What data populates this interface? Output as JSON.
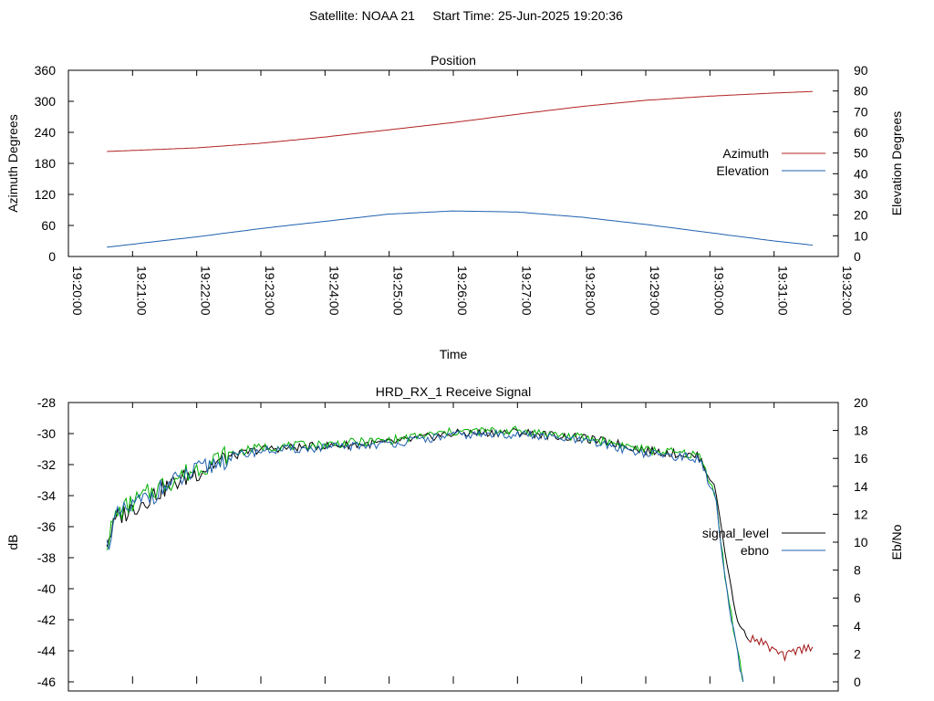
{
  "page_title": "Satellite: NOAA 21     Start Time: 25-Jun-2025 19:20:36",
  "colors": {
    "azimuth": "#b22222",
    "elevation": "#2060b0",
    "signal_level": "#000000",
    "ebno_top": "#00b000",
    "ebno_tail": "#2060b0",
    "signal_tail": "#a01010"
  },
  "chart_data": [
    {
      "type": "line",
      "title": "Position",
      "xlabel": "Time",
      "ylabel": "Azimuth Degrees",
      "y2label": "Elevation Degrees",
      "xlim": [
        "19:20:00",
        "19:32:00"
      ],
      "ylim": [
        0,
        360
      ],
      "y2lim": [
        0,
        90
      ],
      "x_ticks": [
        "19:20:00",
        "19:21:00",
        "19:22:00",
        "19:23:00",
        "19:24:00",
        "19:25:00",
        "19:26:00",
        "19:27:00",
        "19:28:00",
        "19:29:00",
        "19:30:00",
        "19:31:00",
        "19:32:00"
      ],
      "y_ticks": [
        0,
        60,
        120,
        180,
        240,
        300,
        360
      ],
      "y2_ticks": [
        0,
        10,
        20,
        30,
        40,
        50,
        60,
        70,
        80,
        90
      ],
      "legend": "right-center",
      "series": [
        {
          "name": "Azimuth",
          "axis": "y",
          "points": [
            [
              "19:20:36",
              203
            ],
            [
              "19:22:00",
              210
            ],
            [
              "19:23:00",
              219
            ],
            [
              "19:24:00",
              231
            ],
            [
              "19:25:00",
              245
            ],
            [
              "19:26:00",
              259
            ],
            [
              "19:27:00",
              275
            ],
            [
              "19:28:00",
              290
            ],
            [
              "19:29:00",
              302
            ],
            [
              "19:30:00",
              310
            ],
            [
              "19:31:00",
              316
            ],
            [
              "19:31:36",
              319
            ]
          ]
        },
        {
          "name": "Elevation",
          "axis": "y2",
          "points": [
            [
              "19:20:36",
              4.5
            ],
            [
              "19:22:00",
              9.5
            ],
            [
              "19:23:00",
              13.5
            ],
            [
              "19:24:00",
              17
            ],
            [
              "19:25:00",
              20.5
            ],
            [
              "19:26:00",
              22
            ],
            [
              "19:27:00",
              21.5
            ],
            [
              "19:28:00",
              19
            ],
            [
              "19:29:00",
              15.5
            ],
            [
              "19:30:00",
              11.5
            ],
            [
              "19:31:00",
              7.5
            ],
            [
              "19:31:36",
              5.5
            ]
          ]
        }
      ]
    },
    {
      "type": "line",
      "title": "HRD_RX_1 Receive Signal",
      "ylabel": "dB",
      "y2label": "Eb/No",
      "xlim": [
        "19:20:00",
        "19:32:00"
      ],
      "ylim": [
        -46,
        -28
      ],
      "y2lim": [
        0,
        20
      ],
      "y_ticks": [
        -46,
        -44,
        -42,
        -40,
        -38,
        -36,
        -34,
        -32,
        -30,
        -28
      ],
      "y2_ticks": [
        0,
        2,
        4,
        6,
        8,
        10,
        12,
        14,
        16,
        18,
        20
      ],
      "legend": "right-center",
      "series": [
        {
          "name": "signal_level",
          "axis": "y",
          "points": [
            [
              "19:20:36",
              -37
            ],
            [
              "19:20:45",
              -35.5
            ],
            [
              "19:21:00",
              -34.8
            ],
            [
              "19:21:30",
              -33.5
            ],
            [
              "19:22:00",
              -32.5
            ],
            [
              "19:22:30",
              -31.5
            ],
            [
              "19:23:00",
              -31
            ],
            [
              "19:24:00",
              -30.8
            ],
            [
              "19:25:00",
              -30.6
            ],
            [
              "19:26:00",
              -30
            ],
            [
              "19:27:00",
              -29.9
            ],
            [
              "19:28:00",
              -30.3
            ],
            [
              "19:28:30",
              -30.6
            ],
            [
              "19:29:00",
              -31.1
            ],
            [
              "19:29:30",
              -31.3
            ],
            [
              "19:29:50",
              -31.5
            ],
            [
              "19:30:05",
              -33.5
            ],
            [
              "19:30:15",
              -38
            ],
            [
              "19:30:25",
              -42
            ],
            [
              "19:30:35",
              -43.1
            ],
            [
              "19:30:50",
              -43.5
            ],
            [
              "19:31:00",
              -44
            ],
            [
              "19:31:10",
              -44.4
            ],
            [
              "19:31:20",
              -44
            ],
            [
              "19:31:36",
              -43.7
            ]
          ]
        },
        {
          "name": "ebno",
          "axis": "y2",
          "points": [
            [
              "19:20:36",
              10
            ],
            [
              "19:20:45",
              12
            ],
            [
              "19:21:00",
              12.8
            ],
            [
              "19:21:30",
              14.2
            ],
            [
              "19:22:00",
              15.3
            ],
            [
              "19:22:30",
              16.3
            ],
            [
              "19:23:00",
              16.8
            ],
            [
              "19:24:00",
              17
            ],
            [
              "19:25:00",
              17.3
            ],
            [
              "19:26:00",
              17.9
            ],
            [
              "19:27:00",
              18
            ],
            [
              "19:28:00",
              17.5
            ],
            [
              "19:28:30",
              17.1
            ],
            [
              "19:29:00",
              16.6
            ],
            [
              "19:29:30",
              16.4
            ],
            [
              "19:29:50",
              16.2
            ],
            [
              "19:30:05",
              13.5
            ],
            [
              "19:30:15",
              7
            ],
            [
              "19:30:25",
              2.5
            ],
            [
              "19:30:30",
              0.5
            ],
            [
              "19:30:35",
              -1
            ]
          ]
        }
      ]
    }
  ]
}
